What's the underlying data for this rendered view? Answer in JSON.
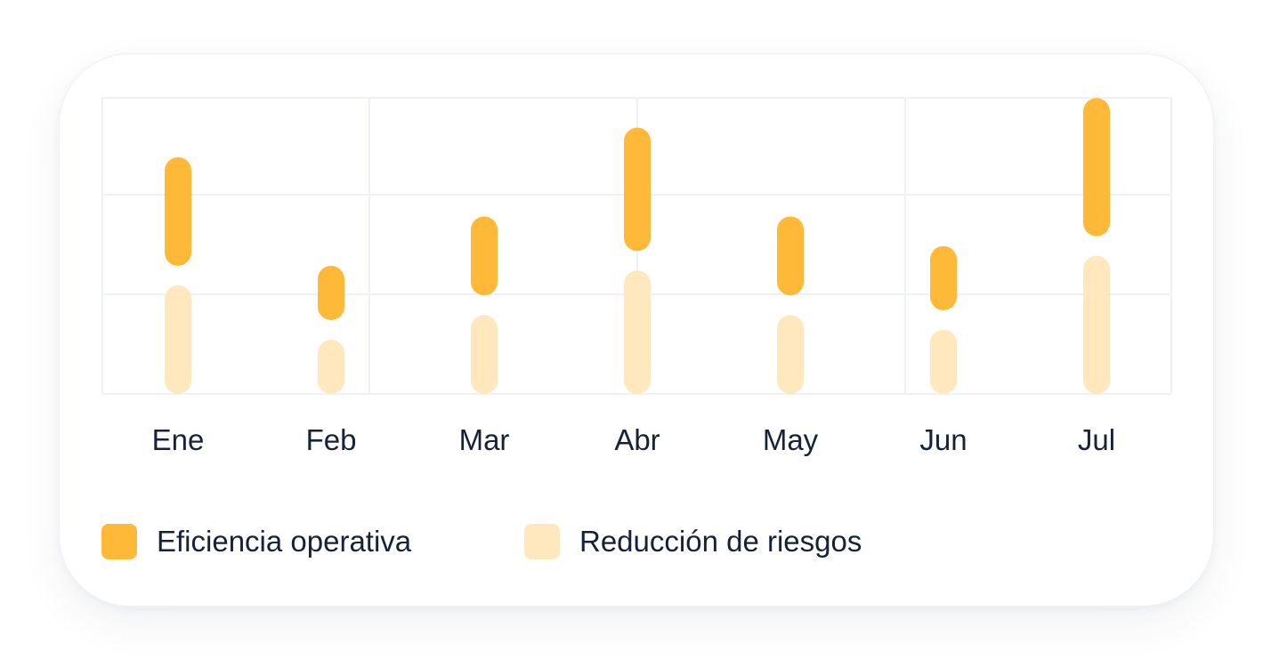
{
  "chart_data": {
    "type": "bar",
    "subtype": "stacked-range",
    "categories": [
      "Ene",
      "Feb",
      "Mar",
      "Abr",
      "May",
      "Jun",
      "Jul"
    ],
    "series": [
      {
        "name": "Reducción de riesgos",
        "color": "#ffe8bd",
        "values": [
          1.1,
          0.55,
          0.8,
          1.25,
          0.8,
          0.65,
          1.4
        ]
      },
      {
        "name": "Eficiencia operativa",
        "color": "#ffb938",
        "values": [
          1.1,
          0.55,
          0.8,
          1.25,
          0.8,
          0.65,
          1.4
        ]
      }
    ],
    "ylim": [
      0,
      3
    ],
    "grid": true,
    "legend_position": "bottom-left"
  },
  "legend": {
    "primary_label": "Eficiencia operativa",
    "secondary_label": "Reducción de riesgos"
  }
}
